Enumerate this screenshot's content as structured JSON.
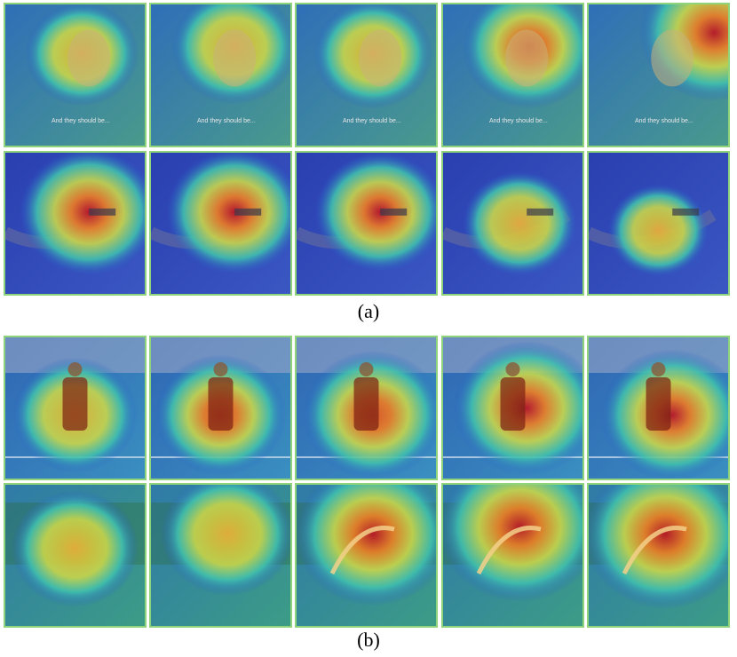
{
  "figure": {
    "panels": [
      {
        "id": "a",
        "caption": "(a)",
        "rows": [
          {
            "subject": "face",
            "overlay_text": "And they should be...",
            "heat_peaks": [
              0.35,
              0.55,
              0.45,
              0.7,
              0.95
            ]
          },
          {
            "subject": "gun",
            "overlay_text": "",
            "heat_peaks": [
              1.0,
              0.95,
              0.85,
              0.55,
              0.3
            ]
          }
        ]
      },
      {
        "id": "b",
        "caption": "(b)",
        "rows": [
          {
            "subject": "basketball-dribbling",
            "overlay_text": "",
            "heat_peaks": [
              0.55,
              0.65,
              0.8,
              0.9,
              0.85
            ]
          },
          {
            "subject": "diving",
            "overlay_text": "",
            "heat_peaks": [
              0.4,
              0.5,
              0.85,
              0.95,
              0.95
            ]
          }
        ]
      }
    ]
  }
}
